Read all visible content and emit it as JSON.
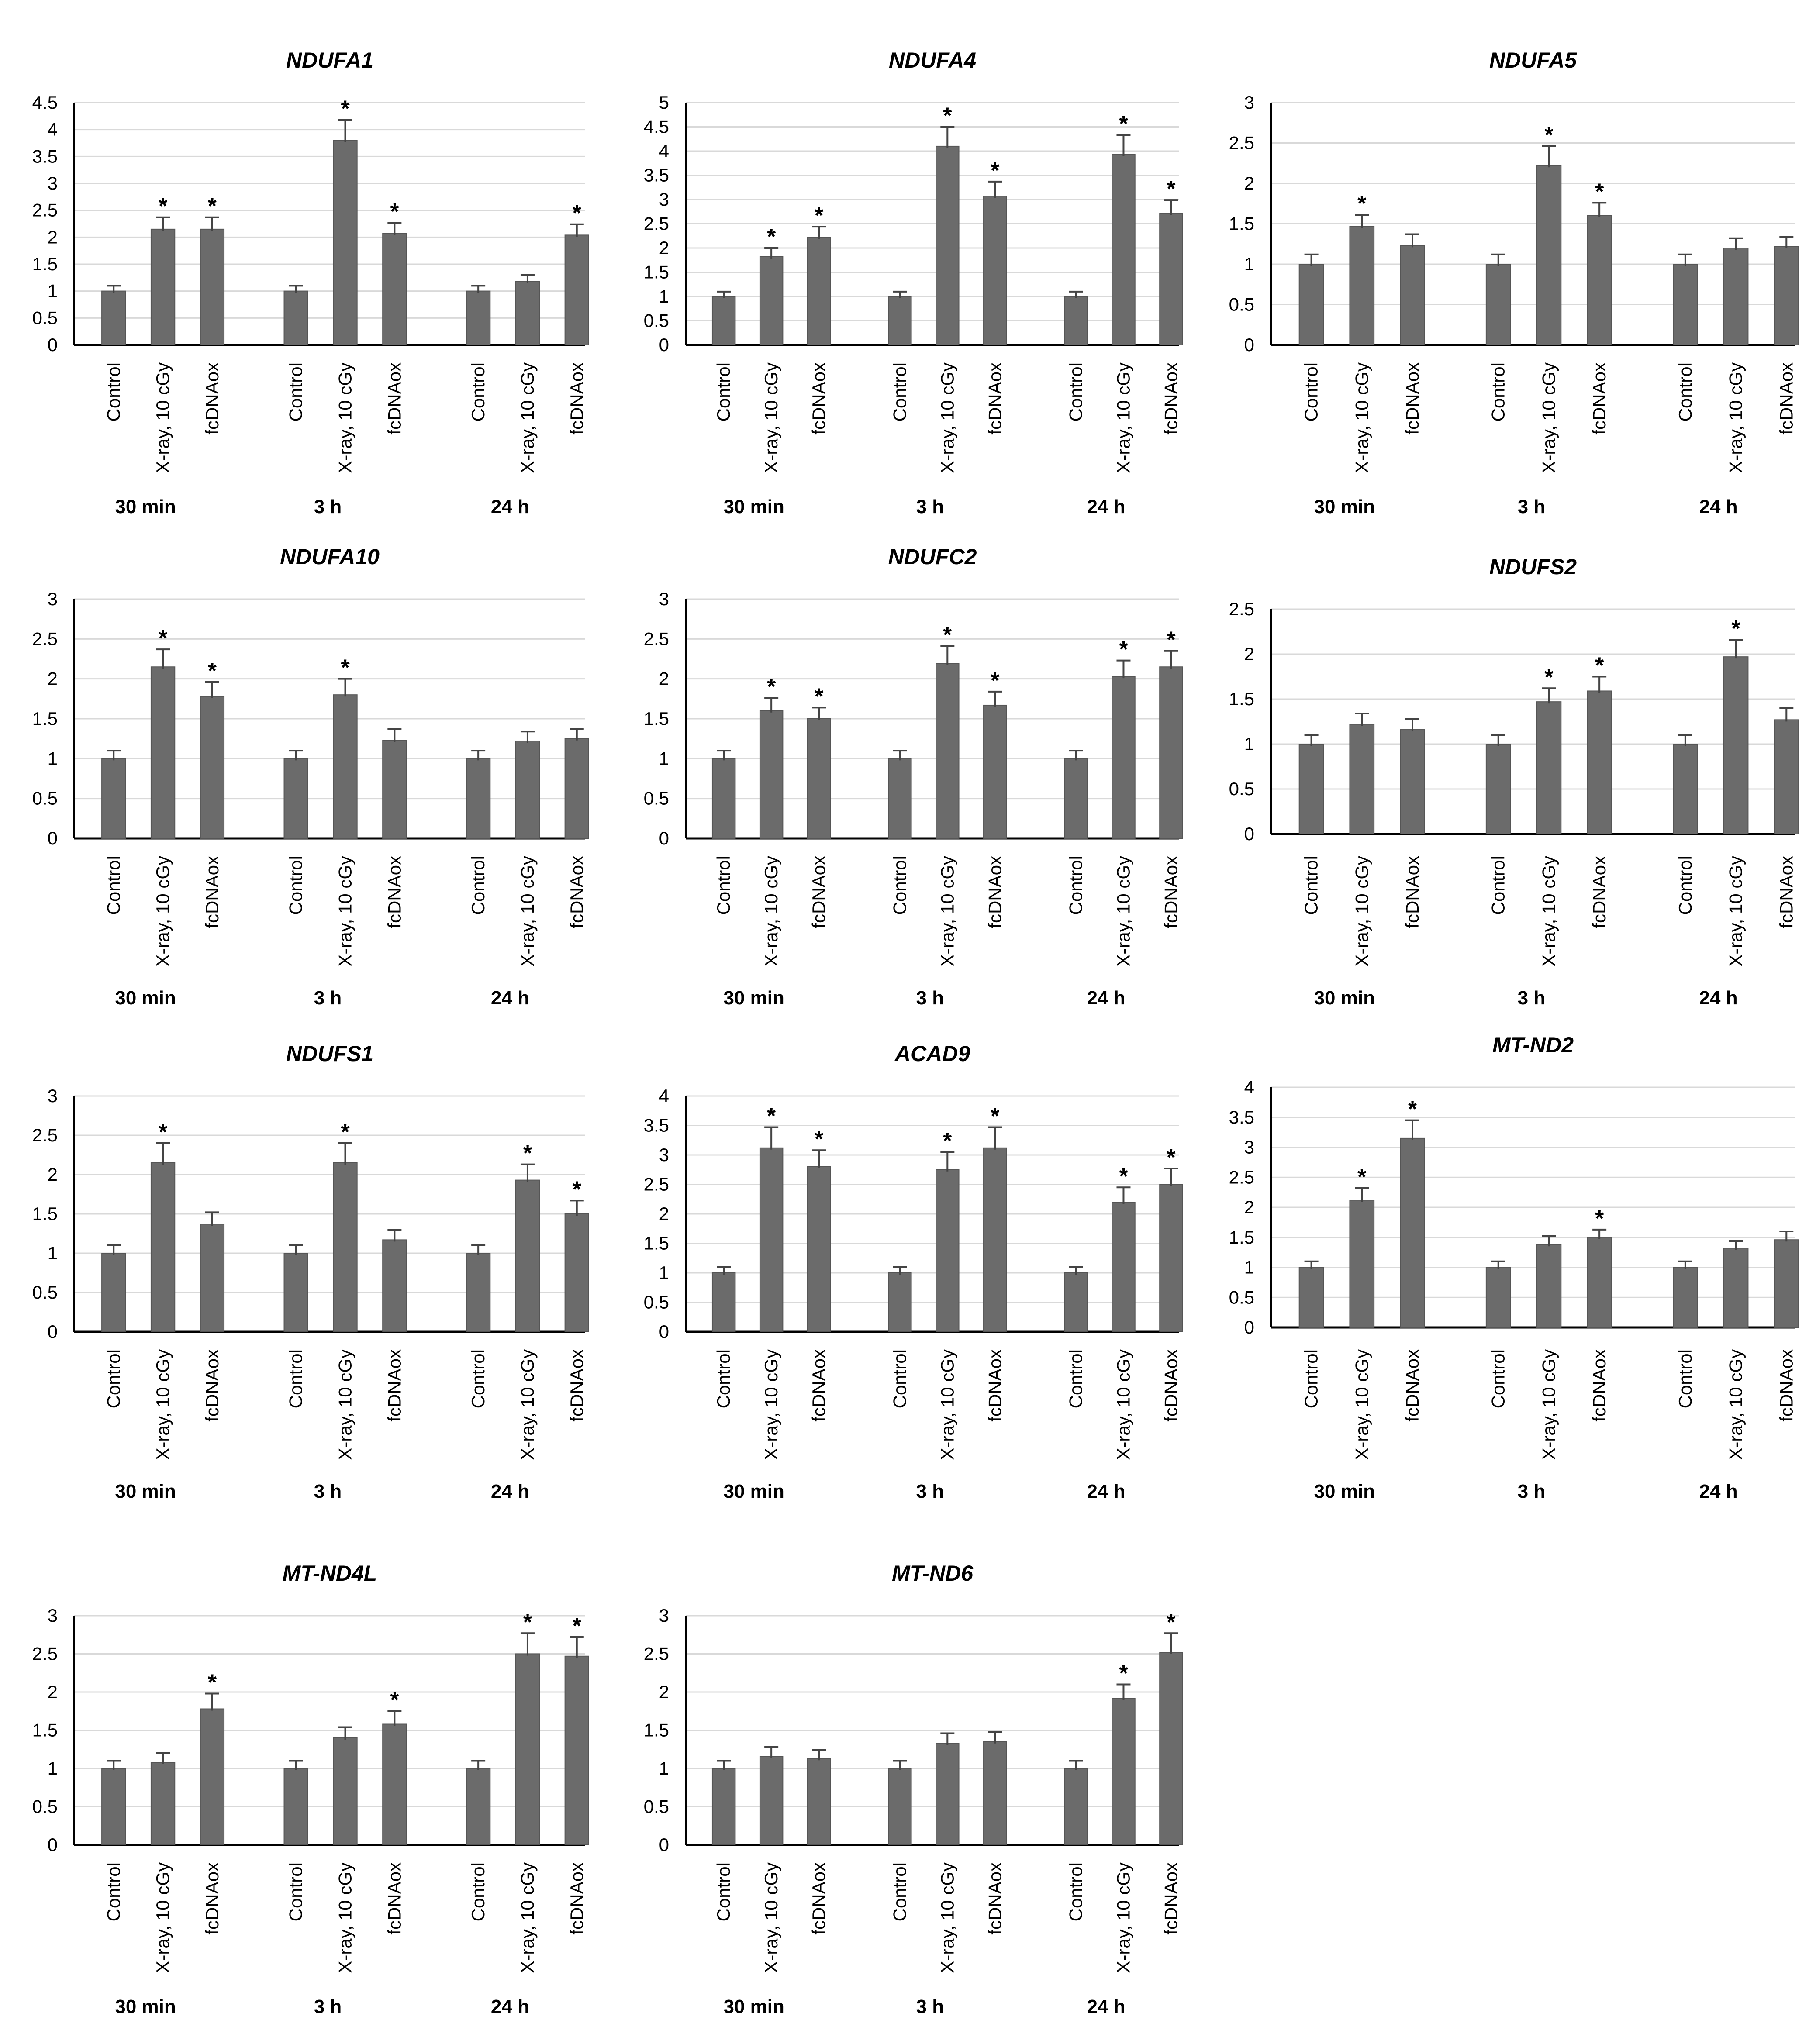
{
  "figure": {
    "categories": [
      "Control",
      "X-ray, 10 cGy",
      "fcDNAox"
    ],
    "groups": [
      "30 min",
      "3 h",
      "24 h"
    ],
    "colors": {
      "bar": "#6b6b6b",
      "bar_edge": "#555555",
      "grid": "#d9d9d9",
      "axis": "#000000",
      "error": "#444444"
    }
  },
  "chart_data": [
    {
      "type": "bar",
      "title": "NDUFA1",
      "ylim": [
        0,
        4.5
      ],
      "yticks": [
        "0",
        "0.5",
        "1",
        "1.5",
        "2",
        "2.5",
        "3",
        "3.5",
        "4",
        "4.5"
      ],
      "grid": true,
      "values": [
        1,
        2.15,
        2.15,
        1,
        3.8,
        2.07,
        1,
        1.18,
        2.04
      ],
      "errors": [
        0.1,
        0.22,
        0.22,
        0.1,
        0.38,
        0.2,
        0.1,
        0.12,
        0.2
      ],
      "significant": [
        false,
        true,
        true,
        false,
        true,
        true,
        false,
        false,
        true
      ]
    },
    {
      "type": "bar",
      "title": "NDUFA4",
      "ylim": [
        0,
        5
      ],
      "yticks": [
        "0",
        "0.5",
        "1",
        "1.5",
        "2",
        "2.5",
        "3",
        "3.5",
        "4",
        "4.5",
        "5"
      ],
      "grid": true,
      "values": [
        1,
        1.82,
        2.22,
        1,
        4.1,
        3.07,
        1,
        3.93,
        2.72
      ],
      "errors": [
        0.1,
        0.18,
        0.22,
        0.1,
        0.4,
        0.3,
        0.1,
        0.4,
        0.27
      ],
      "significant": [
        false,
        true,
        true,
        false,
        true,
        true,
        false,
        true,
        true
      ]
    },
    {
      "type": "bar",
      "title": "NDUFA5",
      "ylim": [
        0,
        3
      ],
      "yticks": [
        "0",
        "0.5",
        "1",
        "1.5",
        "2",
        "2.5",
        "3"
      ],
      "grid": true,
      "values": [
        1,
        1.47,
        1.23,
        1,
        2.22,
        1.6,
        1,
        1.2,
        1.22
      ],
      "errors": [
        0.12,
        0.14,
        0.14,
        0.12,
        0.24,
        0.16,
        0.12,
        0.12,
        0.12
      ],
      "significant": [
        false,
        true,
        false,
        false,
        true,
        true,
        false,
        false,
        false
      ]
    },
    {
      "type": "bar",
      "title": "NDUFA10",
      "ylim": [
        0,
        3
      ],
      "yticks": [
        "0",
        "0.5",
        "1",
        "1.5",
        "2",
        "2.5",
        "3"
      ],
      "grid": true,
      "values": [
        1,
        2.15,
        1.78,
        1,
        1.8,
        1.23,
        1,
        1.22,
        1.25
      ],
      "errors": [
        0.1,
        0.22,
        0.18,
        0.1,
        0.2,
        0.14,
        0.1,
        0.12,
        0.12
      ],
      "significant": [
        false,
        true,
        true,
        false,
        true,
        false,
        false,
        false,
        false
      ]
    },
    {
      "type": "bar",
      "title": "NDUFC2",
      "ylim": [
        0,
        3
      ],
      "yticks": [
        "0",
        "0.5",
        "1",
        "1.5",
        "2",
        "2.5",
        "3"
      ],
      "grid": true,
      "values": [
        1,
        1.6,
        1.5,
        1,
        2.19,
        1.67,
        1,
        2.03,
        2.15
      ],
      "errors": [
        0.1,
        0.16,
        0.14,
        0.1,
        0.22,
        0.17,
        0.1,
        0.2,
        0.2
      ],
      "significant": [
        false,
        true,
        true,
        false,
        true,
        true,
        false,
        true,
        true
      ]
    },
    {
      "type": "bar",
      "title": "NDUFS2",
      "ylim": [
        0,
        2.5
      ],
      "yticks": [
        "0",
        "0.5",
        "1",
        "1.5",
        "2",
        "2.5"
      ],
      "grid": true,
      "values": [
        1,
        1.22,
        1.16,
        1,
        1.47,
        1.59,
        1,
        1.97,
        1.27
      ],
      "errors": [
        0.1,
        0.12,
        0.12,
        0.1,
        0.15,
        0.16,
        0.1,
        0.19,
        0.13
      ],
      "significant": [
        false,
        false,
        false,
        false,
        true,
        true,
        false,
        true,
        false
      ]
    },
    {
      "type": "bar",
      "title": "NDUFS1",
      "ylim": [
        0,
        3
      ],
      "yticks": [
        "0",
        "0.5",
        "1",
        "1.5",
        "2",
        "2.5",
        "3"
      ],
      "grid": true,
      "values": [
        1,
        2.15,
        1.37,
        1,
        2.15,
        1.17,
        1,
        1.93,
        1.5
      ],
      "errors": [
        0.1,
        0.25,
        0.15,
        0.1,
        0.25,
        0.13,
        0.1,
        0.2,
        0.17
      ],
      "significant": [
        false,
        true,
        false,
        false,
        true,
        false,
        false,
        true,
        true
      ]
    },
    {
      "type": "bar",
      "title": "ACAD9",
      "ylim": [
        0,
        4
      ],
      "yticks": [
        "0",
        "0.5",
        "1",
        "1.5",
        "2",
        "2.5",
        "3",
        "3.5",
        "4"
      ],
      "grid": true,
      "values": [
        1,
        3.12,
        2.8,
        1,
        2.75,
        3.12,
        1,
        2.2,
        2.5
      ],
      "errors": [
        0.1,
        0.35,
        0.28,
        0.1,
        0.3,
        0.35,
        0.1,
        0.25,
        0.27
      ],
      "significant": [
        false,
        true,
        true,
        false,
        true,
        true,
        false,
        true,
        true
      ]
    },
    {
      "type": "bar",
      "title": "MT-ND2",
      "ylim": [
        0,
        4
      ],
      "yticks": [
        "0",
        "0.5",
        "1",
        "1.5",
        "2",
        "2.5",
        "3",
        "3.5",
        "4"
      ],
      "grid": true,
      "values": [
        1,
        2.12,
        3.15,
        1,
        1.38,
        1.5,
        1,
        1.32,
        1.46
      ],
      "errors": [
        0.1,
        0.2,
        0.3,
        0.1,
        0.14,
        0.13,
        0.1,
        0.12,
        0.14
      ],
      "significant": [
        false,
        true,
        true,
        false,
        false,
        true,
        false,
        false,
        false
      ]
    },
    {
      "type": "bar",
      "title": "MT-ND4L",
      "ylim": [
        0,
        3
      ],
      "yticks": [
        "0",
        "0.5",
        "1",
        "1.5",
        "2",
        "2.5",
        "3"
      ],
      "grid": true,
      "values": [
        1,
        1.08,
        1.78,
        1,
        1.4,
        1.58,
        1,
        2.5,
        2.47
      ],
      "errors": [
        0.1,
        0.12,
        0.2,
        0.1,
        0.14,
        0.17,
        0.1,
        0.27,
        0.25
      ],
      "significant": [
        false,
        false,
        true,
        false,
        false,
        true,
        false,
        true,
        true
      ]
    },
    {
      "type": "bar",
      "title": "MT-ND6",
      "ylim": [
        0,
        3
      ],
      "yticks": [
        "0",
        "0.5",
        "1",
        "1.5",
        "2",
        "2.5",
        "3"
      ],
      "grid": true,
      "values": [
        1,
        1.16,
        1.13,
        1,
        1.33,
        1.35,
        1,
        1.92,
        2.52
      ],
      "errors": [
        0.1,
        0.12,
        0.11,
        0.1,
        0.13,
        0.13,
        0.1,
        0.18,
        0.25
      ],
      "significant": [
        false,
        false,
        false,
        false,
        false,
        false,
        false,
        true,
        true
      ]
    }
  ]
}
